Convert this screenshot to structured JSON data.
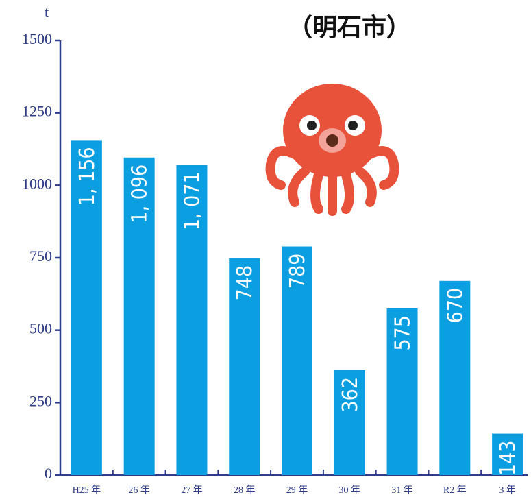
{
  "chart_data": {
    "type": "bar",
    "title": "（明石市）",
    "y_label": "t",
    "categories": [
      "H25 年",
      "26 年",
      "27 年",
      "28 年",
      "29 年",
      "30 年",
      "31 年",
      "R2 年",
      "3 年"
    ],
    "values": [
      1156,
      1096,
      1071,
      748,
      789,
      362,
      575,
      670,
      143
    ],
    "value_labels": [
      "1, 156",
      "1, 096",
      "1, 071",
      "748",
      "789",
      "362",
      "575",
      "670",
      "143"
    ],
    "color": "#0b9fe2",
    "ylim": [
      0,
      1500
    ],
    "yticks": [
      0,
      250,
      500,
      750,
      1000,
      1250,
      1500
    ],
    "grid": false
  }
}
